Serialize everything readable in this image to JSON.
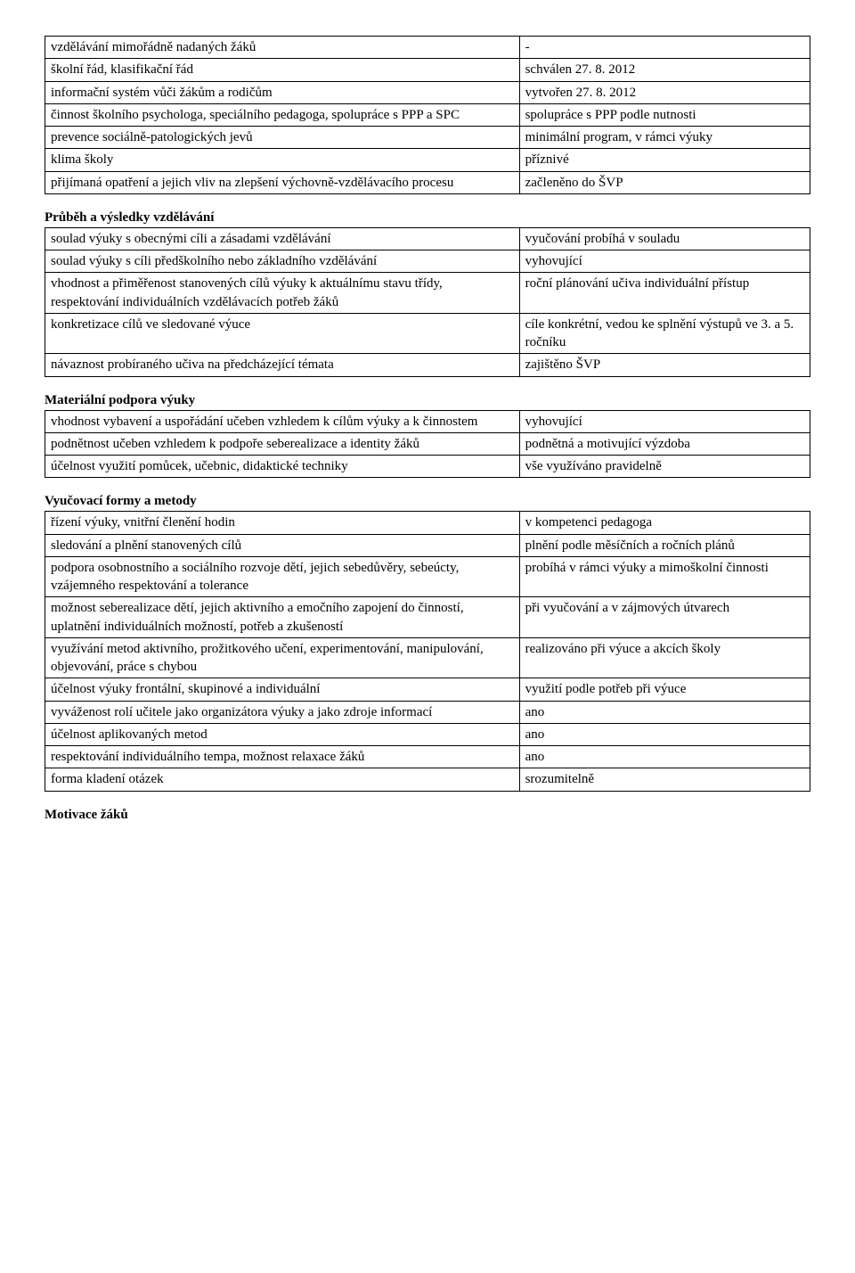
{
  "table1": {
    "rows": [
      {
        "l": "vzdělávání mimořádně nadaných žáků",
        "r": "-"
      },
      {
        "l": "školní řád, klasifikační řád",
        "r": "schválen 27. 8. 2012"
      },
      {
        "l": "informační systém vůči žákům a rodičům",
        "r": "vytvořen 27. 8. 2012"
      },
      {
        "l": "činnost školního psychologa, speciálního pedagoga, spolupráce s PPP a SPC",
        "r": "spolupráce s PPP podle nutnosti"
      },
      {
        "l": "prevence sociálně-patologických jevů",
        "r": "minimální program, v rámci výuky"
      },
      {
        "l": "klima školy",
        "r": "příznivé"
      },
      {
        "l": "přijímaná opatření a jejich vliv na zlepšení výchovně-vzdělávacího procesu",
        "r": "začleněno do ŠVP"
      }
    ]
  },
  "section2": {
    "heading": "Průběh a výsledky vzdělávání",
    "rows": [
      {
        "l": "soulad výuky s obecnými cíli a zásadami vzdělávání",
        "r": "vyučování probíhá v souladu"
      },
      {
        "l": "soulad výuky s cíli předškolního nebo základního vzdělávání",
        "r": "vyhovující"
      },
      {
        "l": "vhodnost a přiměřenost stanovených cílů výuky k aktuálnímu stavu třídy, respektování individuálních vzdělávacích potřeb žáků",
        "r": "roční plánování učiva individuální přístup"
      },
      {
        "l": "konkretizace cílů ve sledované výuce",
        "r": "cíle konkrétní, vedou ke splnění výstupů ve 3. a 5. ročníku"
      },
      {
        "l": "návaznost probíraného učiva na předcházející témata",
        "r": "zajištěno ŠVP"
      }
    ]
  },
  "section3": {
    "heading": "Materiální podpora výuky",
    "rows": [
      {
        "l": "vhodnost vybavení a uspořádání učeben vzhledem k cílům výuky a k činnostem",
        "r": "vyhovující"
      },
      {
        "l": "podnětnost učeben vzhledem k podpoře seberealizace a identity žáků",
        "r": "podnětná a motivující výzdoba"
      },
      {
        "l": "účelnost využití pomůcek, učebnic, didaktické techniky",
        "r": "vše využíváno pravidelně"
      }
    ]
  },
  "section4": {
    "heading": "Vyučovací formy a metody",
    "rows": [
      {
        "l": "řízení výuky, vnitřní členění hodin",
        "r": "v kompetenci pedagoga"
      },
      {
        "l": "sledování a plnění stanovených cílů",
        "r": "plnění podle měsíčních a ročních plánů"
      },
      {
        "l": "podpora osobnostního a sociálního rozvoje dětí, jejich sebedůvěry, sebeúcty, vzájemného respektování a tolerance",
        "r": "probíhá v rámci výuky a mimoškolní činnosti"
      },
      {
        "l": "možnost seberealizace dětí, jejich aktivního a emočního zapojení do činností, uplatnění individuálních možností, potřeb a zkušeností",
        "r": "při vyučování a v zájmových útvarech"
      },
      {
        "l": "využívání metod aktivního, prožitkového učení, experimentování, manipulování, objevování, práce s chybou",
        "r": "realizováno při výuce a akcích školy"
      },
      {
        "l": "účelnost výuky frontální, skupinové a individuální",
        "r": "využití podle potřeb při výuce"
      },
      {
        "l": "vyváženost rolí učitele jako organizátora výuky a jako zdroje informací",
        "r": "ano"
      },
      {
        "l": "účelnost aplikovaných metod",
        "r": "ano"
      },
      {
        "l": "respektování individuálního tempa, možnost relaxace žáků",
        "r": "ano"
      },
      {
        "l": "forma kladení otázek",
        "r": "srozumitelně"
      }
    ]
  },
  "final_heading": "Motivace žáků"
}
